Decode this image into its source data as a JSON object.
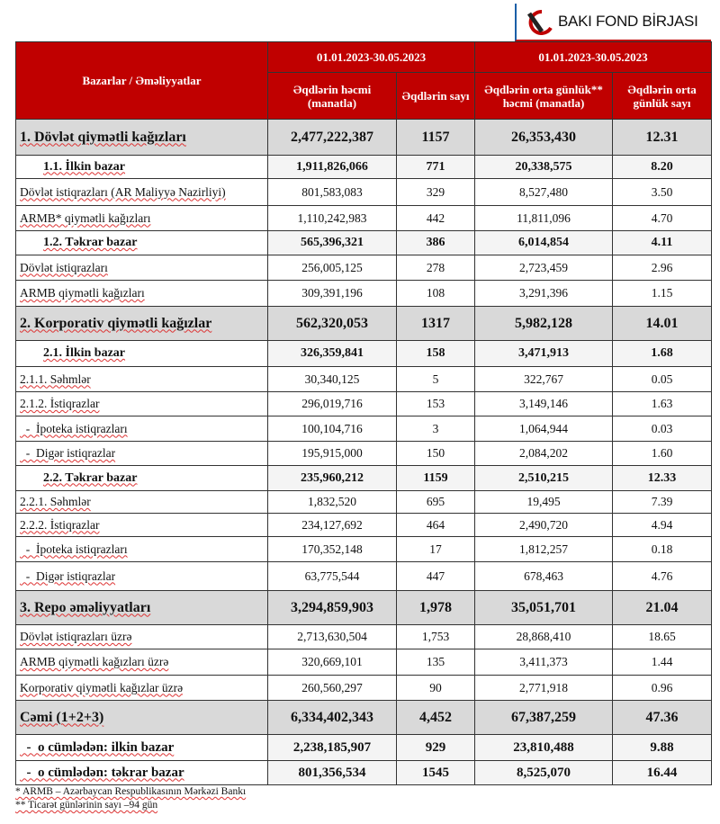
{
  "logo": {
    "text": "BAKI FOND BİRJASI",
    "colors": {
      "red": "#c00000",
      "blue": "#1b5fa8"
    }
  },
  "header": {
    "label_col": "Bazarlar / Əməliyyatlar",
    "period1": "01.01.2023-30.05.2023",
    "period2": "01.01.2023-30.05.2023",
    "cols": [
      "Əqdlərin həcmi (manatla)",
      "Əqdlərin sayı",
      "Əqdlərin orta günlük** həcmi (manatla)",
      "Əqdlərin orta günlük sayı"
    ]
  },
  "rows": [
    {
      "type": "section",
      "label": "1. Dövlət qiymətli kağızları",
      "values": [
        "2,477,222,387",
        "1157",
        "26,353,430",
        "12.31"
      ]
    },
    {
      "type": "sub",
      "label": "1.1. İlkin bazar",
      "values": [
        "1,911,826,066",
        "771",
        "20,338,575",
        "8.20"
      ]
    },
    {
      "type": "normal",
      "label": "Dövlət istiqrazları (AR Maliyyə Nazirliyi)",
      "values": [
        "801,583,083",
        "329",
        "8,527,480",
        "3.50"
      ]
    },
    {
      "type": "normal",
      "label": "ARMB* qiymətli kağızları",
      "values": [
        "1,110,242,983",
        "442",
        "11,811,096",
        "4.70"
      ]
    },
    {
      "type": "sub",
      "label": "1.2. Təkrar bazar",
      "values": [
        "565,396,321",
        "386",
        "6,014,854",
        "4.11"
      ]
    },
    {
      "type": "normal",
      "label": "Dövlət istiqrazları",
      "values": [
        "256,005,125",
        "278",
        "2,723,459",
        "2.96"
      ]
    },
    {
      "type": "normal",
      "label": "ARMB qiymətli kağızları",
      "values": [
        "309,391,196",
        "108",
        "3,291,396",
        "1.15"
      ]
    },
    {
      "type": "section",
      "label": "2. Korporativ qiymətli kağızlar",
      "values": [
        "562,320,053",
        "1317",
        "5,982,128",
        "14.01"
      ]
    },
    {
      "type": "sub",
      "label": "2.1. İlkin bazar",
      "values": [
        "326,359,841",
        "158",
        "3,471,913",
        "1.68"
      ]
    },
    {
      "type": "normal",
      "label": "2.1.1. Səhmlər",
      "values": [
        "30,340,125",
        "5",
        "322,767",
        "0.05"
      ]
    },
    {
      "type": "normal",
      "label": "2.1.2. İstiqrazlar",
      "values": [
        "296,019,716",
        "153",
        "3,149,146",
        "1.63"
      ]
    },
    {
      "type": "normal",
      "label": "  -  İpoteka istiqrazları",
      "values": [
        "100,104,716",
        "3",
        "1,064,944",
        "0.03"
      ]
    },
    {
      "type": "normal",
      "label": "  -  Digər istiqrazlar",
      "values": [
        "195,915,000",
        "150",
        "2,084,202",
        "1.60"
      ]
    },
    {
      "type": "sub",
      "label": "2.2. Təkrar bazar",
      "values": [
        "235,960,212",
        "1159",
        "2,510,215",
        "12.33"
      ]
    },
    {
      "type": "normal",
      "label": "2.2.1. Səhmlər",
      "values": [
        "1,832,520",
        "695",
        "19,495",
        "7.39"
      ]
    },
    {
      "type": "normal",
      "label": "2.2.2. İstiqrazlar",
      "values": [
        "234,127,692",
        "464",
        "2,490,720",
        "4.94"
      ]
    },
    {
      "type": "normal",
      "label": "  -  İpoteka istiqrazları",
      "values": [
        "170,352,148",
        "17",
        "1,812,257",
        "0.18"
      ]
    },
    {
      "type": "normal",
      "label": "  -  Digər istiqrazlar",
      "values": [
        "63,775,544",
        "447",
        "678,463",
        "4.76"
      ]
    },
    {
      "type": "section",
      "label": "3. Repo əməliyyatları",
      "values": [
        "3,294,859,903",
        "1,978",
        "35,051,701",
        "21.04"
      ]
    },
    {
      "type": "normal",
      "label": "Dövlət istiqrazları üzrə",
      "values": [
        "2,713,630,504",
        "1,753",
        "28,868,410",
        "18.65"
      ]
    },
    {
      "type": "normal",
      "label": "ARMB qiymətli kağızları üzrə",
      "values": [
        "320,669,101",
        "135",
        "3,411,373",
        "1.44"
      ]
    },
    {
      "type": "normal",
      "label": "Korporativ qiymətli kağızlar üzrə",
      "values": [
        "260,560,297",
        "90",
        "2,771,918",
        "0.96"
      ]
    },
    {
      "type": "section",
      "label": "Cəmi (1+2+3)",
      "values": [
        "6,334,402,343",
        "4,452",
        "67,387,259",
        "47.36"
      ]
    },
    {
      "type": "bold",
      "label": "  -  o cümlədən: ilkin bazar",
      "values": [
        "2,238,185,907",
        "929",
        "23,810,488",
        "9.88"
      ]
    },
    {
      "type": "bold",
      "label": "  -  o cümlədən: təkrar bazar",
      "values": [
        "801,356,534",
        "1545",
        "8,525,070",
        "16.44"
      ]
    }
  ],
  "footnotes": [
    "* ARMB – Azərbaycan Respublikasının Mərkəzi Bankı",
    "** Ticarət günlərinin sayı –94 gün"
  ]
}
